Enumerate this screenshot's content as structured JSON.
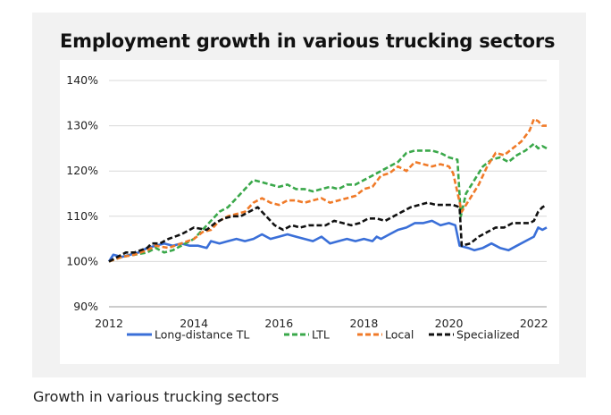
{
  "caption": "Growth in various trucking sectors",
  "chart_data": {
    "type": "line",
    "title": "Employment growth in various trucking sectors",
    "xlabel": "",
    "ylabel": "",
    "xlim": [
      2012,
      2022.3
    ],
    "ylim": [
      90,
      140
    ],
    "y_unit": "%",
    "x_ticks": [
      2012,
      2014,
      2016,
      2018,
      2020,
      2022
    ],
    "y_ticks": [
      90,
      100,
      110,
      120,
      130,
      140
    ],
    "grid": "horizontal",
    "legend_position": "bottom",
    "series": [
      {
        "name": "Long-distance TL",
        "color": "#3a6fd8",
        "dash": "solid",
        "points": [
          [
            2012.0,
            100
          ],
          [
            2012.1,
            101.5
          ],
          [
            2012.3,
            101
          ],
          [
            2012.5,
            101.5
          ],
          [
            2012.7,
            102
          ],
          [
            2012.9,
            103
          ],
          [
            2013.1,
            103.5
          ],
          [
            2013.3,
            104
          ],
          [
            2013.5,
            103.5
          ],
          [
            2013.7,
            104
          ],
          [
            2013.9,
            103.5
          ],
          [
            2014.1,
            103.5
          ],
          [
            2014.3,
            103
          ],
          [
            2014.4,
            104.5
          ],
          [
            2014.6,
            104
          ],
          [
            2014.8,
            104.5
          ],
          [
            2015.0,
            105
          ],
          [
            2015.2,
            104.5
          ],
          [
            2015.4,
            105
          ],
          [
            2015.6,
            106
          ],
          [
            2015.8,
            105
          ],
          [
            2016.0,
            105.5
          ],
          [
            2016.2,
            106
          ],
          [
            2016.4,
            105.5
          ],
          [
            2016.6,
            105
          ],
          [
            2016.8,
            104.5
          ],
          [
            2017.0,
            105.5
          ],
          [
            2017.2,
            104
          ],
          [
            2017.4,
            104.5
          ],
          [
            2017.6,
            105
          ],
          [
            2017.8,
            104.5
          ],
          [
            2018.0,
            105
          ],
          [
            2018.2,
            104.5
          ],
          [
            2018.3,
            105.5
          ],
          [
            2018.4,
            105
          ],
          [
            2018.6,
            106
          ],
          [
            2018.8,
            107
          ],
          [
            2019.0,
            107.5
          ],
          [
            2019.2,
            108.5
          ],
          [
            2019.4,
            108.5
          ],
          [
            2019.6,
            109
          ],
          [
            2019.8,
            108
          ],
          [
            2020.0,
            108.5
          ],
          [
            2020.15,
            108
          ],
          [
            2020.25,
            103.5
          ],
          [
            2020.45,
            103
          ],
          [
            2020.6,
            102.5
          ],
          [
            2020.8,
            103
          ],
          [
            2021.0,
            104
          ],
          [
            2021.2,
            103
          ],
          [
            2021.4,
            102.5
          ],
          [
            2021.6,
            103.5
          ],
          [
            2021.8,
            104.5
          ],
          [
            2022.0,
            105.5
          ],
          [
            2022.1,
            107.5
          ],
          [
            2022.2,
            107
          ],
          [
            2022.3,
            107.5
          ]
        ]
      },
      {
        "name": "LTL",
        "color": "#3aa84a",
        "dash": "dashed",
        "points": [
          [
            2012.0,
            100
          ],
          [
            2012.3,
            101
          ],
          [
            2012.6,
            101.5
          ],
          [
            2012.9,
            102
          ],
          [
            2013.1,
            103
          ],
          [
            2013.3,
            102
          ],
          [
            2013.5,
            102.5
          ],
          [
            2013.8,
            104
          ],
          [
            2014.0,
            105
          ],
          [
            2014.2,
            107
          ],
          [
            2014.4,
            109
          ],
          [
            2014.6,
            111
          ],
          [
            2014.8,
            112
          ],
          [
            2015.0,
            114
          ],
          [
            2015.2,
            116
          ],
          [
            2015.4,
            118
          ],
          [
            2015.6,
            117.5
          ],
          [
            2015.8,
            117
          ],
          [
            2016.0,
            116.5
          ],
          [
            2016.2,
            117
          ],
          [
            2016.4,
            116
          ],
          [
            2016.6,
            116
          ],
          [
            2016.8,
            115.5
          ],
          [
            2017.0,
            116
          ],
          [
            2017.2,
            116.5
          ],
          [
            2017.4,
            116
          ],
          [
            2017.6,
            117
          ],
          [
            2017.8,
            117
          ],
          [
            2018.0,
            118
          ],
          [
            2018.2,
            119
          ],
          [
            2018.4,
            120
          ],
          [
            2018.6,
            121
          ],
          [
            2018.8,
            122
          ],
          [
            2019.0,
            124
          ],
          [
            2019.2,
            124.5
          ],
          [
            2019.4,
            124.5
          ],
          [
            2019.6,
            124.5
          ],
          [
            2019.8,
            124
          ],
          [
            2020.0,
            123
          ],
          [
            2020.2,
            122.5
          ],
          [
            2020.28,
            110
          ],
          [
            2020.4,
            115
          ],
          [
            2020.6,
            118
          ],
          [
            2020.8,
            121
          ],
          [
            2021.0,
            122.5
          ],
          [
            2021.2,
            123
          ],
          [
            2021.4,
            122
          ],
          [
            2021.6,
            123.5
          ],
          [
            2021.8,
            124.5
          ],
          [
            2022.0,
            126
          ],
          [
            2022.1,
            125
          ],
          [
            2022.2,
            125.5
          ],
          [
            2022.3,
            125
          ]
        ]
      },
      {
        "name": "Local",
        "color": "#f07a28",
        "dash": "dashed",
        "points": [
          [
            2012.0,
            100
          ],
          [
            2012.3,
            101
          ],
          [
            2012.6,
            101.5
          ],
          [
            2012.9,
            102.5
          ],
          [
            2013.1,
            103.5
          ],
          [
            2013.4,
            103
          ],
          [
            2013.7,
            104
          ],
          [
            2014.0,
            105
          ],
          [
            2014.2,
            106.5
          ],
          [
            2014.4,
            107
          ],
          [
            2014.6,
            109
          ],
          [
            2014.8,
            110
          ],
          [
            2015.0,
            110.5
          ],
          [
            2015.2,
            111
          ],
          [
            2015.4,
            113
          ],
          [
            2015.6,
            114
          ],
          [
            2015.8,
            113
          ],
          [
            2016.0,
            112.5
          ],
          [
            2016.2,
            113.5
          ],
          [
            2016.4,
            113.5
          ],
          [
            2016.6,
            113
          ],
          [
            2016.8,
            113.5
          ],
          [
            2017.0,
            114
          ],
          [
            2017.2,
            113
          ],
          [
            2017.4,
            113.5
          ],
          [
            2017.6,
            114
          ],
          [
            2017.8,
            114.5
          ],
          [
            2018.0,
            116
          ],
          [
            2018.2,
            116.5
          ],
          [
            2018.4,
            119
          ],
          [
            2018.6,
            119.5
          ],
          [
            2018.8,
            121
          ],
          [
            2019.0,
            120
          ],
          [
            2019.2,
            122
          ],
          [
            2019.4,
            121.5
          ],
          [
            2019.6,
            121
          ],
          [
            2019.8,
            121.5
          ],
          [
            2020.0,
            121
          ],
          [
            2020.1,
            119.5
          ],
          [
            2020.3,
            111
          ],
          [
            2020.5,
            114
          ],
          [
            2020.7,
            117
          ],
          [
            2020.9,
            121
          ],
          [
            2021.1,
            124
          ],
          [
            2021.3,
            123.5
          ],
          [
            2021.5,
            125
          ],
          [
            2021.7,
            126.5
          ],
          [
            2021.9,
            129
          ],
          [
            2022.0,
            131.5
          ],
          [
            2022.1,
            131
          ],
          [
            2022.2,
            130
          ],
          [
            2022.3,
            130
          ]
        ]
      },
      {
        "name": "Specialized",
        "color": "#111111",
        "dash": "dashed",
        "points": [
          [
            2012.0,
            100
          ],
          [
            2012.2,
            101
          ],
          [
            2012.4,
            102
          ],
          [
            2012.6,
            102
          ],
          [
            2012.9,
            103
          ],
          [
            2013.0,
            104
          ],
          [
            2013.2,
            104
          ],
          [
            2013.4,
            105
          ],
          [
            2013.7,
            106
          ],
          [
            2014.0,
            107.5
          ],
          [
            2014.3,
            107
          ],
          [
            2014.5,
            108.5
          ],
          [
            2014.7,
            109.5
          ],
          [
            2014.9,
            110
          ],
          [
            2015.1,
            110
          ],
          [
            2015.3,
            111
          ],
          [
            2015.5,
            112
          ],
          [
            2015.7,
            110
          ],
          [
            2015.9,
            108
          ],
          [
            2016.1,
            107
          ],
          [
            2016.3,
            108
          ],
          [
            2016.5,
            107.5
          ],
          [
            2016.7,
            108
          ],
          [
            2016.9,
            108
          ],
          [
            2017.1,
            108
          ],
          [
            2017.3,
            109
          ],
          [
            2017.5,
            108.5
          ],
          [
            2017.7,
            108
          ],
          [
            2017.9,
            108.5
          ],
          [
            2018.1,
            109.5
          ],
          [
            2018.3,
            109.5
          ],
          [
            2018.5,
            109
          ],
          [
            2018.7,
            110
          ],
          [
            2018.9,
            111
          ],
          [
            2019.1,
            112
          ],
          [
            2019.3,
            112.5
          ],
          [
            2019.5,
            113
          ],
          [
            2019.7,
            112.5
          ],
          [
            2019.9,
            112.5
          ],
          [
            2020.1,
            112.5
          ],
          [
            2020.25,
            112
          ],
          [
            2020.3,
            103.5
          ],
          [
            2020.5,
            104
          ],
          [
            2020.7,
            105.5
          ],
          [
            2020.9,
            106.5
          ],
          [
            2021.1,
            107.5
          ],
          [
            2021.3,
            107.5
          ],
          [
            2021.5,
            108.5
          ],
          [
            2021.7,
            108.5
          ],
          [
            2021.9,
            108.5
          ],
          [
            2022.0,
            109
          ],
          [
            2022.1,
            111
          ],
          [
            2022.2,
            112
          ],
          [
            2022.3,
            112.5
          ]
        ]
      }
    ]
  }
}
